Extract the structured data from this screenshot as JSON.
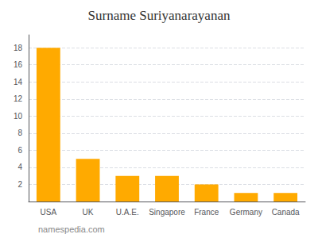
{
  "chart_data": {
    "type": "bar",
    "title": "Surname Suriyanarayanan",
    "categories": [
      "USA",
      "UK",
      "U.A.E.",
      "Singapore",
      "France",
      "Germany",
      "Canada"
    ],
    "values": [
      18,
      5,
      3,
      3,
      2,
      1,
      1
    ],
    "color": "#FFAA00",
    "ylim": [
      0,
      19.5
    ],
    "yticks": [
      2,
      4,
      6,
      8,
      10,
      12,
      14,
      16,
      18
    ],
    "grid": true,
    "annotation": "namespedia.com"
  }
}
